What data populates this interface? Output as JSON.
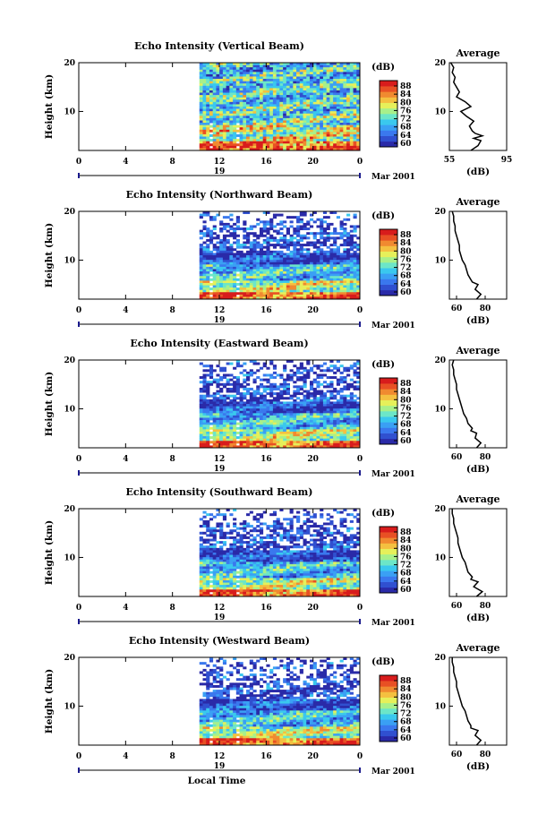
{
  "x_axis_label": "Local Time",
  "date_label": "19",
  "month_label": "Mar 2001",
  "colorbar_title": "(dB)",
  "y_axis_label": "Height (km)",
  "avg_title": "Average",
  "avg_xlabel": "(dB)",
  "colormap": [
    "#2a2aa8",
    "#3050d0",
    "#3a78ee",
    "#3aa0f4",
    "#3ac8ee",
    "#6ce6c8",
    "#a8f08a",
    "#e6f05a",
    "#f4c040",
    "#f08a30",
    "#e85024",
    "#d81c1c"
  ],
  "chart_data": [
    {
      "type": "heatmap",
      "title": "Echo Intensity (Vertical Beam)",
      "ylabel": "Height (km)",
      "xlabel": "",
      "x_ticks": [
        "0",
        "4",
        "8",
        "12",
        "16",
        "20",
        "0"
      ],
      "x_range": [
        0,
        24
      ],
      "y_ticks": [
        "20",
        "10"
      ],
      "y_range": [
        2,
        20
      ],
      "data_start_hour": 10.3,
      "colorbar": {
        "label": "(dB)",
        "ticks": [
          "88",
          "84",
          "80",
          "76",
          "72",
          "68",
          "64",
          "60"
        ],
        "range": [
          58,
          90
        ]
      },
      "profile": {
        "title": "Average",
        "xlabel": "(dB)",
        "x_ticks": [
          "55",
          "95"
        ],
        "x_range": [
          55,
          95
        ],
        "y_ticks": [
          "20",
          "10"
        ],
        "height": [
          2,
          3,
          4,
          4.5,
          5,
          5.5,
          6,
          7,
          8,
          9,
          10,
          11,
          12,
          13,
          14,
          15,
          16,
          17,
          18,
          19,
          20
        ],
        "value": [
          70,
          75,
          77,
          72,
          78,
          73,
          71,
          69,
          72,
          67,
          63,
          70,
          66,
          60,
          62,
          60,
          58,
          59,
          57,
          58,
          56
        ]
      }
    },
    {
      "type": "heatmap",
      "title": "Echo Intensity (Northward Beam)",
      "ylabel": "Height (km)",
      "xlabel": "",
      "x_ticks": [
        "0",
        "4",
        "8",
        "12",
        "16",
        "20",
        "0"
      ],
      "x_range": [
        0,
        24
      ],
      "y_ticks": [
        "20",
        "10"
      ],
      "y_range": [
        2,
        20
      ],
      "data_start_hour": 10.3,
      "colorbar": {
        "label": "(dB)",
        "ticks": [
          "88",
          "84",
          "80",
          "76",
          "72",
          "68",
          "64",
          "60"
        ],
        "range": [
          58,
          90
        ]
      },
      "profile": {
        "title": "Average",
        "xlabel": "(dB)",
        "x_ticks": [
          "60",
          "80"
        ],
        "x_range": [
          55,
          95
        ],
        "y_ticks": [
          "20",
          "10"
        ],
        "height": [
          2,
          3,
          4,
          5,
          5.5,
          6,
          7,
          8,
          9,
          10,
          11,
          12,
          13,
          14,
          15,
          16,
          17,
          18,
          19,
          20
        ],
        "value": [
          74,
          77,
          73,
          75,
          71,
          70,
          68,
          67,
          66,
          64,
          63,
          62,
          62,
          61,
          60,
          59,
          59,
          58,
          58,
          57
        ]
      }
    },
    {
      "type": "heatmap",
      "title": "Echo Intensity (Eastward Beam)",
      "ylabel": "Height (km)",
      "xlabel": "",
      "x_ticks": [
        "0",
        "4",
        "8",
        "12",
        "16",
        "20",
        "0"
      ],
      "x_range": [
        0,
        24
      ],
      "y_ticks": [
        "20",
        "10"
      ],
      "y_range": [
        2,
        20
      ],
      "data_start_hour": 10.3,
      "colorbar": {
        "label": "(dB)",
        "ticks": [
          "88",
          "84",
          "80",
          "76",
          "72",
          "68",
          "64",
          "60"
        ],
        "range": [
          58,
          90
        ]
      },
      "profile": {
        "title": "Average",
        "xlabel": "(dB)",
        "x_ticks": [
          "60",
          "80"
        ],
        "x_range": [
          55,
          95
        ],
        "y_ticks": [
          "20",
          "10"
        ],
        "height": [
          2,
          3,
          4,
          5,
          5.5,
          6,
          7,
          8,
          9,
          10,
          11,
          12,
          13,
          14,
          15,
          16,
          17,
          18,
          19,
          20
        ],
        "value": [
          74,
          77,
          73,
          74,
          70,
          71,
          68,
          67,
          65,
          64,
          63,
          62,
          61,
          60,
          60,
          59,
          58,
          58,
          57,
          58
        ]
      }
    },
    {
      "type": "heatmap",
      "title": "Echo Intensity (Southward Beam)",
      "ylabel": "Height (km)",
      "xlabel": "",
      "x_ticks": [
        "0",
        "4",
        "8",
        "12",
        "16",
        "20",
        "0"
      ],
      "x_range": [
        0,
        24
      ],
      "y_ticks": [
        "20",
        "10"
      ],
      "y_range": [
        2,
        20
      ],
      "data_start_hour": 10.3,
      "colorbar": {
        "label": "(dB)",
        "ticks": [
          "88",
          "84",
          "80",
          "76",
          "72",
          "68",
          "64",
          "60"
        ],
        "range": [
          58,
          90
        ]
      },
      "profile": {
        "title": "Average",
        "xlabel": "(dB)",
        "x_ticks": [
          "60",
          "80"
        ],
        "x_range": [
          55,
          95
        ],
        "y_ticks": [
          "20",
          "10"
        ],
        "height": [
          2,
          3,
          4,
          5,
          5.5,
          6,
          7,
          8,
          9,
          10,
          11,
          12,
          13,
          14,
          15,
          16,
          17,
          18,
          19,
          20
        ],
        "value": [
          74,
          78,
          72,
          75,
          70,
          71,
          68,
          67,
          66,
          64,
          63,
          62,
          61,
          61,
          60,
          59,
          58,
          58,
          57,
          57
        ]
      }
    },
    {
      "type": "heatmap",
      "title": "Echo Intensity (Westward Beam)",
      "ylabel": "Height (km)",
      "xlabel": "Local Time",
      "x_ticks": [
        "0",
        "4",
        "8",
        "12",
        "16",
        "20",
        "0"
      ],
      "x_range": [
        0,
        24
      ],
      "y_ticks": [
        "20",
        "10"
      ],
      "y_range": [
        2,
        20
      ],
      "data_start_hour": 10.3,
      "colorbar": {
        "label": "(dB)",
        "ticks": [
          "88",
          "84",
          "80",
          "76",
          "72",
          "68",
          "64",
          "60"
        ],
        "range": [
          58,
          90
        ]
      },
      "profile": {
        "title": "Average",
        "xlabel": "(dB)",
        "x_ticks": [
          "60",
          "80"
        ],
        "x_range": [
          55,
          95
        ],
        "y_ticks": [
          "20",
          "10"
        ],
        "height": [
          2,
          3,
          4,
          5,
          5.5,
          6,
          7,
          8,
          9,
          10,
          11,
          12,
          13,
          14,
          15,
          16,
          17,
          18,
          19,
          20
        ],
        "value": [
          74,
          77,
          73,
          75,
          70,
          70,
          68,
          67,
          66,
          64,
          63,
          62,
          61,
          60,
          60,
          59,
          58,
          58,
          57,
          57
        ]
      }
    }
  ]
}
